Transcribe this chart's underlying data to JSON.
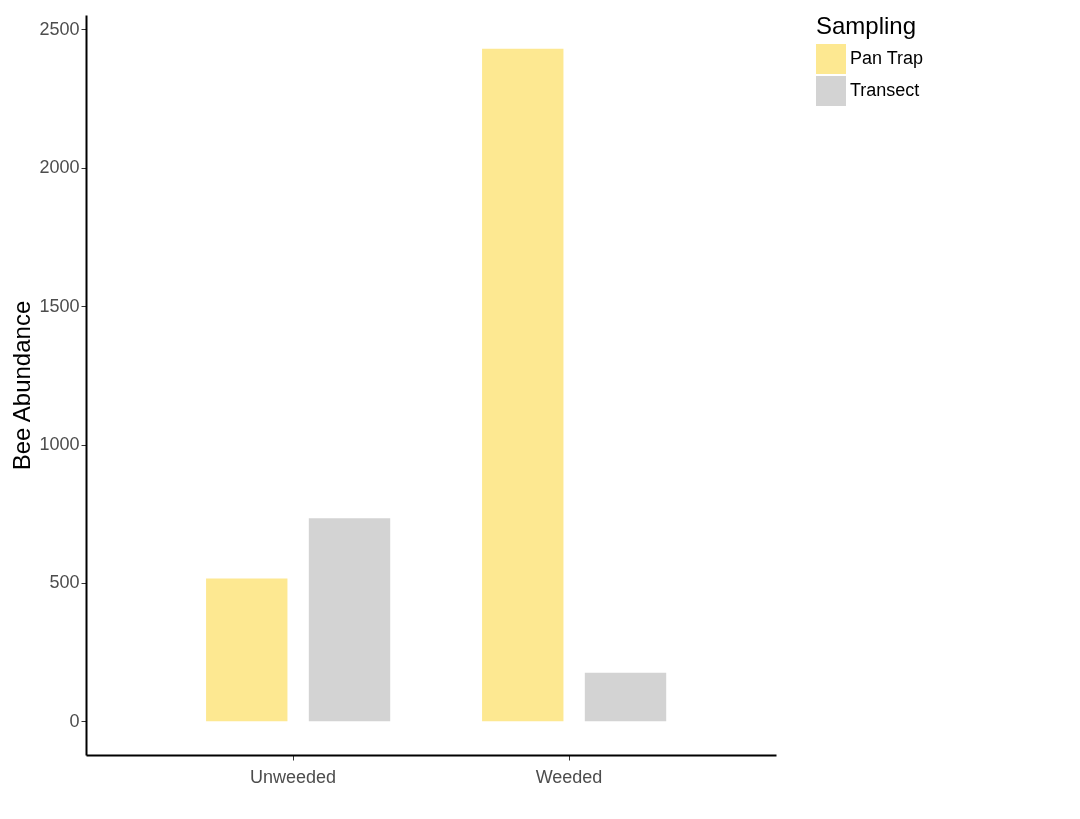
{
  "chart_data": {
    "type": "bar",
    "ylabel": "Bee Abundance",
    "legend_title": "Sampling",
    "categories": [
      "Unweeded",
      "Weeded"
    ],
    "series": [
      {
        "name": "Pan Trap",
        "color": "#fde891",
        "values": [
          516,
          2430
        ]
      },
      {
        "name": "Transect",
        "color": "#d3d3d3",
        "values": [
          734,
          176
        ]
      }
    ],
    "ylim": [
      -121.5,
      2551.5
    ],
    "yticks": [
      0,
      500,
      1000,
      1500,
      2000,
      2500
    ],
    "grid": false,
    "legend": "right"
  }
}
